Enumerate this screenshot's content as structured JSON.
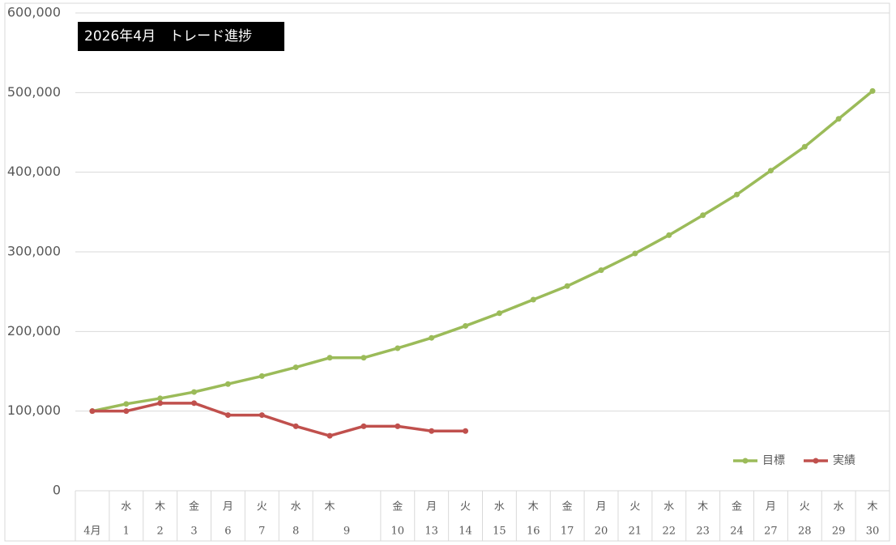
{
  "chart_data": {
    "type": "line",
    "title": "2026年4月　トレード進捗",
    "categories": [
      "4月",
      "1",
      "2",
      "3",
      "6",
      "7",
      "8",
      "9",
      null,
      "10",
      "13",
      "14",
      "15",
      "16",
      "17",
      "20",
      "21",
      "22",
      "23",
      "24",
      "27",
      "28",
      "29",
      "30"
    ],
    "weekdays": [
      null,
      "水",
      "木",
      "金",
      "月",
      "火",
      "水",
      "木",
      null,
      "金",
      "月",
      "火",
      "水",
      "木",
      "金",
      "月",
      "火",
      "水",
      "木",
      "金",
      "月",
      "火",
      "水",
      "木"
    ],
    "series": [
      {
        "name": "目標",
        "color": "#9bbb59",
        "values": [
          100000,
          109000,
          116000,
          124000,
          134000,
          144000,
          155000,
          167000,
          167000,
          179000,
          192000,
          207000,
          223000,
          240000,
          257000,
          277000,
          298000,
          321000,
          346000,
          372000,
          402000,
          432000,
          467000,
          502000
        ]
      },
      {
        "name": "実績",
        "color": "#c0504d",
        "values": [
          100000,
          100000,
          110000,
          110000,
          95000,
          95000,
          81000,
          69000,
          81000,
          81000,
          75000,
          75000,
          null,
          null,
          null,
          null,
          null,
          null,
          null,
          null,
          null,
          null,
          null,
          null
        ]
      }
    ],
    "ylim": [
      0,
      600000
    ],
    "yticks": [
      0,
      {
        "value": 100000,
        "label": "100,000"
      },
      {
        "value": 200000,
        "label": "200,000"
      },
      {
        "value": 300000,
        "label": "300,000"
      },
      {
        "value": 400000,
        "label": "400,000"
      },
      {
        "value": 500000,
        "label": "500,000"
      },
      {
        "value": 600000,
        "label": "600,000"
      }
    ],
    "grid": true,
    "legend": "bottom-right"
  }
}
